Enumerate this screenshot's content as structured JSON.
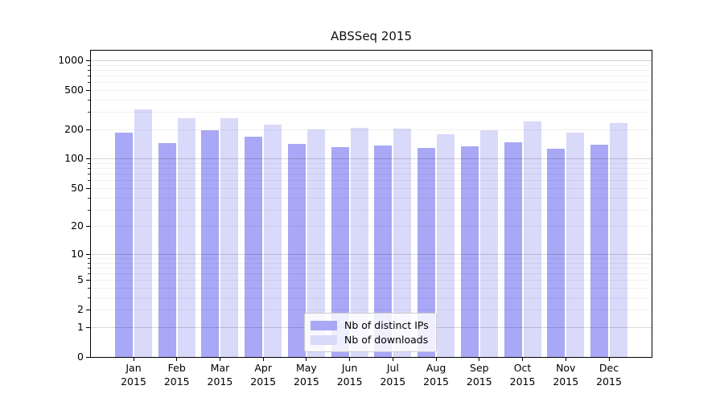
{
  "chart_data": {
    "type": "bar",
    "title": "ABSSeq 2015",
    "categories": [
      "Jan",
      "Feb",
      "Mar",
      "Apr",
      "May",
      "Jun",
      "Jul",
      "Aug",
      "Sep",
      "Oct",
      "Nov",
      "Dec"
    ],
    "x_tick_year": "2015",
    "series": [
      {
        "name": "Nb of distinct IPs",
        "color": "#a8a8f6",
        "values": [
          185,
          145,
          197,
          168,
          143,
          131,
          137,
          128,
          134,
          147,
          127,
          140
        ]
      },
      {
        "name": "Nb of downloads",
        "color": "#d9d9fa",
        "values": [
          320,
          261,
          258,
          224,
          199,
          205,
          201,
          178,
          197,
          240,
          185,
          233
        ]
      }
    ],
    "y_axis": {
      "scale": "log1p",
      "tick_values": [
        0,
        1,
        2,
        5,
        10,
        20,
        50,
        100,
        200,
        500,
        1000
      ],
      "top_value": 1275
    },
    "x_axis": {
      "label": ""
    },
    "legend": {
      "position": "inside-bottom-center"
    },
    "grid": {
      "shown": true,
      "major_values": [
        1,
        10,
        100,
        1000
      ],
      "major_color": "rgba(0,0,0,0.16)",
      "minor_color": "rgba(0,0,0,0.055)"
    },
    "colors": {
      "background": "#ffffff",
      "axis": "#000000",
      "text": "#111111"
    }
  }
}
